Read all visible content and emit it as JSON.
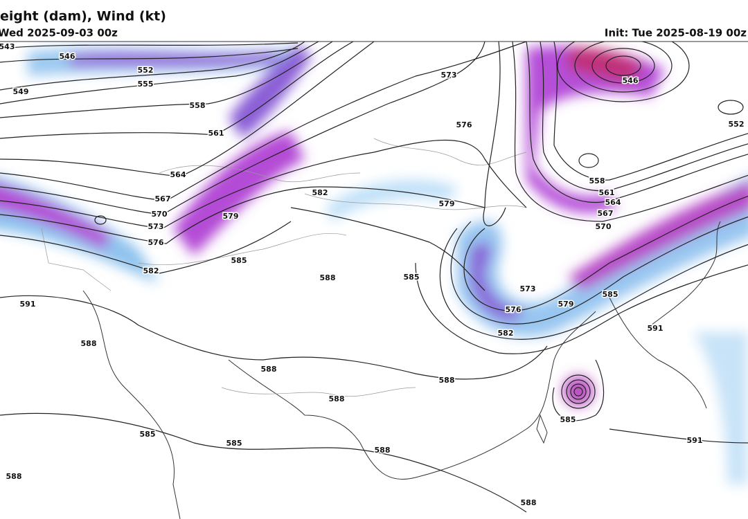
{
  "header": {
    "title": "eight (dam), Wind (kt)",
    "valid": "Wed 2025-09-03 00z",
    "init": "Init: Tue 2025-08-19 00z"
  },
  "contour_labels": [
    543,
    546,
    549,
    552,
    555,
    558,
    561,
    564,
    567,
    570,
    573,
    576,
    579,
    582,
    585,
    582,
    588,
    585,
    573,
    576,
    579,
    546,
    552,
    558,
    561,
    564,
    567,
    570,
    573,
    576,
    579,
    582,
    585,
    591,
    591,
    588,
    588,
    588,
    588,
    585,
    591,
    585,
    585,
    588,
    588,
    588
  ]
}
